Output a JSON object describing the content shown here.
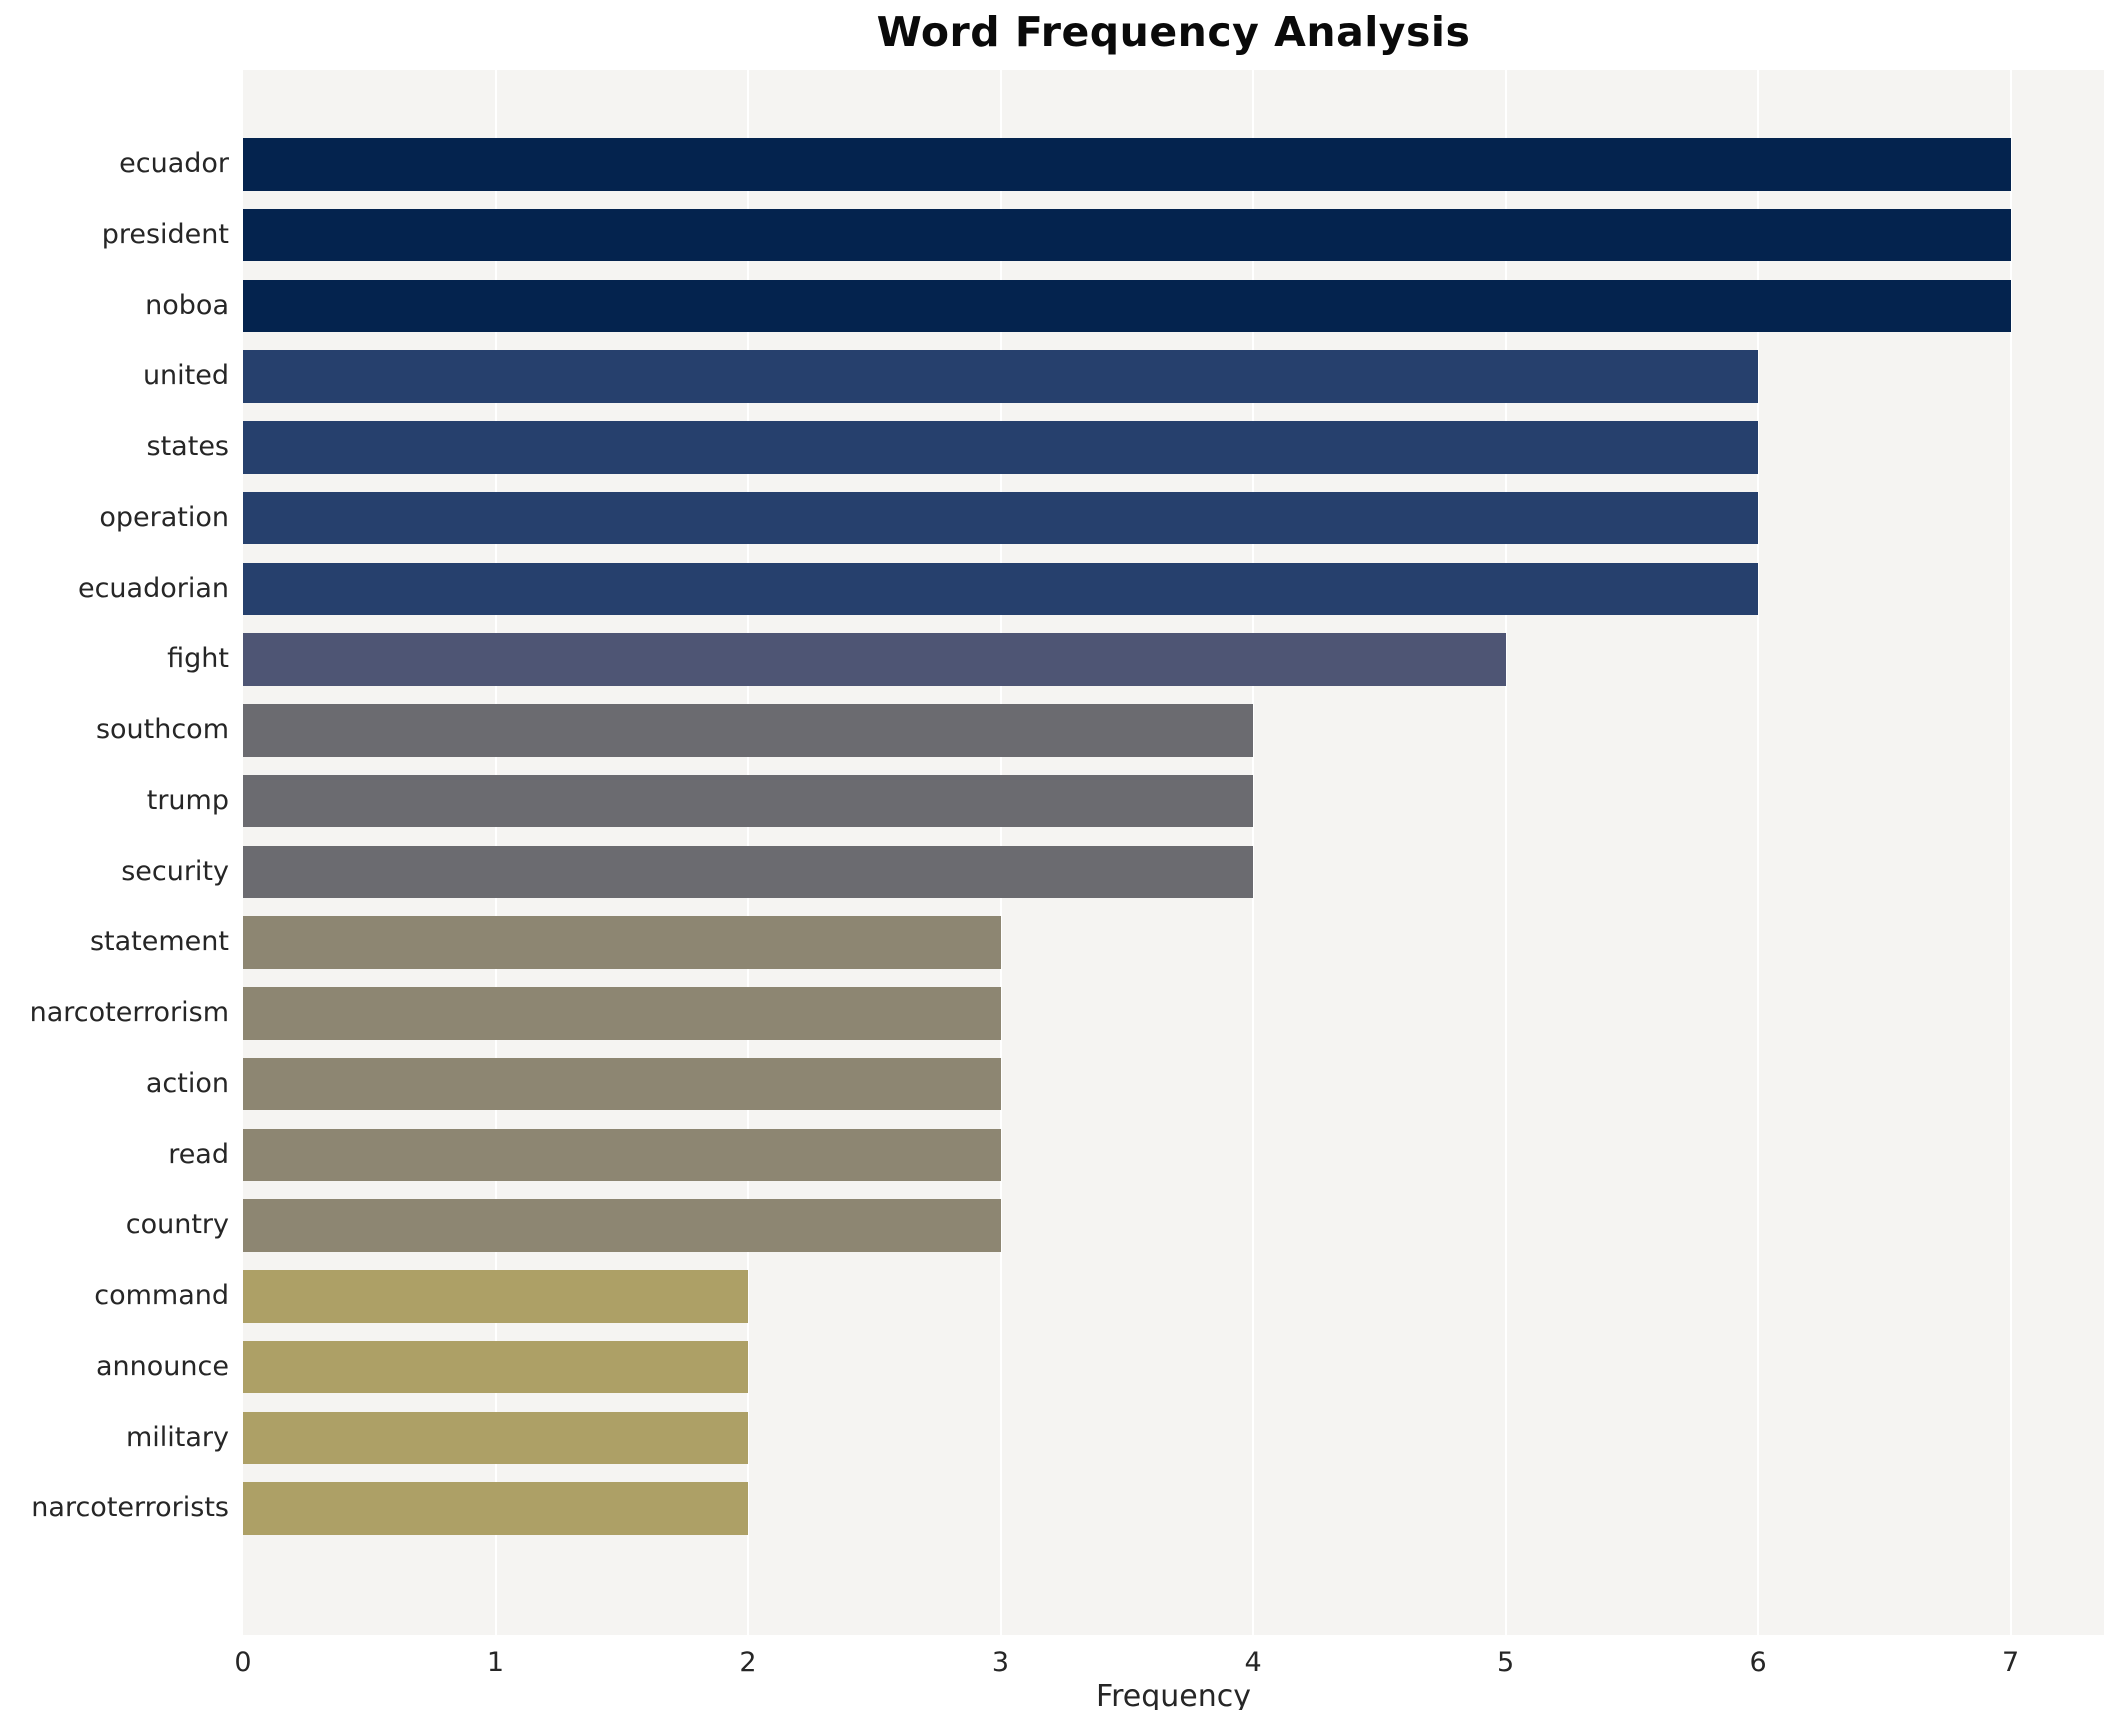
{
  "title": "Word Frequency Analysis",
  "chart_data": {
    "type": "bar",
    "orientation": "horizontal",
    "title": "Word Frequency Analysis",
    "xlabel": "Frequency",
    "ylabel": "",
    "categories": [
      "ecuador",
      "president",
      "noboa",
      "united",
      "states",
      "operation",
      "ecuadorian",
      "fight",
      "southcom",
      "trump",
      "security",
      "statement",
      "narcoterrorism",
      "action",
      "read",
      "country",
      "command",
      "announce",
      "military",
      "narcoterrorists"
    ],
    "values": [
      7,
      7,
      7,
      6,
      6,
      6,
      6,
      5,
      4,
      4,
      4,
      3,
      3,
      3,
      3,
      3,
      2,
      2,
      2,
      2
    ],
    "xticks": [
      0,
      1,
      2,
      3,
      4,
      5,
      6,
      7
    ],
    "xlim": [
      0,
      7.37
    ],
    "grid": "vertical-white-gridlines",
    "legend_position": "none",
    "color_by_value": {
      "7": "#04234e",
      "6": "#26406d",
      "5": "#4e5574",
      "4": "#6b6b70",
      "3": "#8d8672",
      "2": "#ada066"
    }
  },
  "colors": {
    "page_bg": "#ffffff",
    "panel_bg": "#f5f4f2",
    "gridline": "#ffffff",
    "tick_text": "#262626",
    "title_text": "#0a0a0a"
  }
}
